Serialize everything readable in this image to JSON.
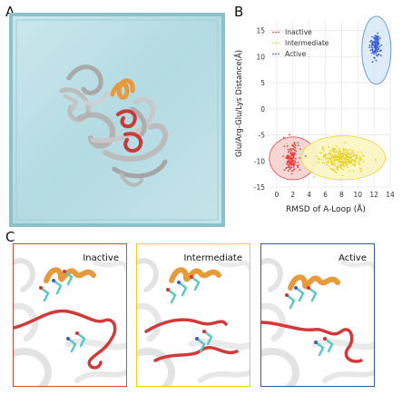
{
  "labels": {
    "a": "A",
    "b": "B",
    "c": "C"
  },
  "chart_data": {
    "type": "scatter",
    "xlabel": "RMSD of A-Loop (Å)",
    "ylabel": "Glu/Arg-Glu/Lys Distance(Å)",
    "xlim": [
      -1,
      14
    ],
    "ylim": [
      -15,
      17
    ],
    "xticks": [
      0,
      2,
      4,
      6,
      8,
      10,
      12,
      14
    ],
    "yticks": [
      -15,
      -10,
      -5,
      0,
      5,
      10,
      15
    ],
    "grid": true,
    "legend_position": "top-left",
    "series": [
      {
        "name": "Inactive",
        "color": "#e8413b",
        "center": [
          1.8,
          -9.6
        ],
        "spread": [
          0.45,
          1.4
        ],
        "count": 150,
        "ellipse": {
          "cx": 2.0,
          "cy": -9.5,
          "rx": 2.9,
          "ry": 4.1,
          "fill": "#f9d2d0",
          "stroke": "#e8413b"
        }
      },
      {
        "name": "Intermediate",
        "color": "#e6d534",
        "center": [
          8.1,
          -9.6
        ],
        "spread": [
          1.3,
          1.0
        ],
        "count": 320,
        "ellipse": {
          "cx": 8.2,
          "cy": -9.4,
          "rx": 5.2,
          "ry": 4.2,
          "fill": "#fbf6c2",
          "stroke": "#e6d534"
        }
      },
      {
        "name": "Active",
        "color": "#3d5fd6",
        "center": [
          12.2,
          12.1
        ],
        "spread": [
          0.3,
          1.2
        ],
        "count": 120,
        "ellipse": {
          "cx": 12.3,
          "cy": 11.2,
          "rx": 1.8,
          "ry": 6.5,
          "fill": "#dbe9f8",
          "stroke": "#4a8ad4"
        }
      }
    ]
  },
  "snapshots": [
    {
      "title": "Inactive",
      "border": "#d9463b"
    },
    {
      "title": "Intermediate",
      "border": "#f0cf1c"
    },
    {
      "title": "Active",
      "border": "#2f5d92"
    }
  ],
  "colors": {
    "water": "#b8dde4",
    "water_edge": "#7fb5c0",
    "ribbon_grey": "#c2c2c2",
    "helix_orange": "#e79a3a",
    "loop_red": "#d23a3a",
    "residue_cyan": "#5cc7c4",
    "residue_blue": "#3b5bd0",
    "residue_red": "#d8332d"
  }
}
